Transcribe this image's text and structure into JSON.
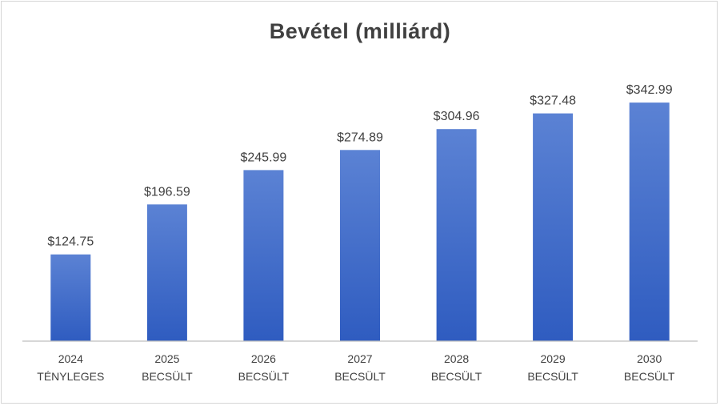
{
  "chart_data": {
    "type": "bar",
    "title": "Bevétel (milliárd)",
    "xlabel": "",
    "ylabel": "",
    "categories": [
      [
        "2024",
        "TÉNYLEGES"
      ],
      [
        "2025",
        "BECSÜLT"
      ],
      [
        "2026",
        "BECSÜLT"
      ],
      [
        "2027",
        "BECSÜLT"
      ],
      [
        "2028",
        "BECSÜLT"
      ],
      [
        "2029",
        "BECSÜLT"
      ],
      [
        "2030",
        "BECSÜLT"
      ]
    ],
    "values": [
      124.75,
      196.59,
      245.99,
      274.89,
      304.96,
      327.48,
      342.99
    ],
    "data_labels": [
      "$124.75",
      "$196.59",
      "$245.99",
      "$274.89",
      "$304.96",
      "$327.48",
      "$342.99"
    ],
    "ylim": [
      0,
      380
    ],
    "grid": false,
    "legend": "none",
    "colors": {
      "bar_top": "#5b82d4",
      "bar_bottom": "#2f5cc0",
      "text": "#404040",
      "axis": "#bfbfbf"
    }
  }
}
